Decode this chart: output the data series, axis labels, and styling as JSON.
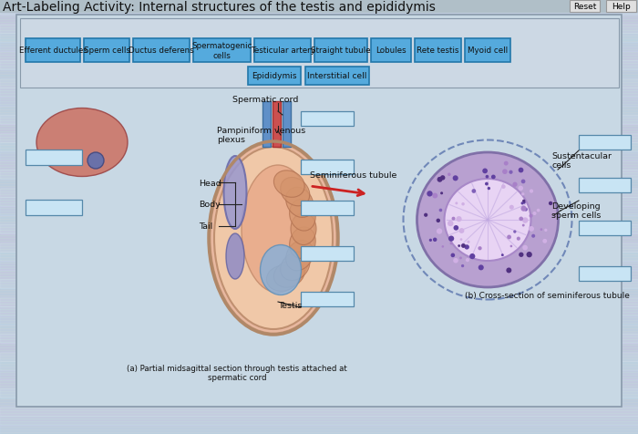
{
  "title": "Art-Labeling Activity: Internal structures of the testis and epididymis",
  "title_fontsize": 10,
  "bg_color": "#c0cfd8",
  "panel_border": "#9aaabb",
  "btn_color": "#55aadd",
  "btn_border": "#2277aa",
  "btn_text": "#111111",
  "reset_help_bg": "#dddddd",
  "box_color": "#c8e4f4",
  "box_border": "#5588aa",
  "buttons_row1": [
    "Efferent ductules",
    "Sperm cells",
    "Ductus deferens",
    "Spermatogenic\ncells",
    "Testicular artery",
    "Straight tubule",
    "Lobules",
    "Rete testis",
    "Myoid cell"
  ],
  "buttons_row2": [
    "Epididymis",
    "Interstitial cell"
  ],
  "caption_a": "(a) Partial midsagittal section through testis attached at\nspermatic cord",
  "caption_b": "(b) Cross-section of seminiferous tubule"
}
